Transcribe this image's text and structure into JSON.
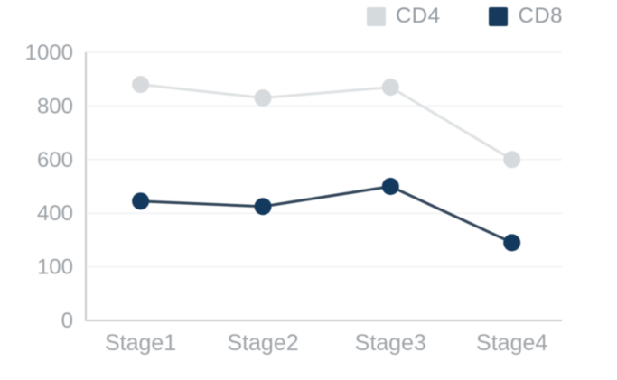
{
  "legend": {
    "items": [
      {
        "label": "CD4",
        "color": "#d5dadd"
      },
      {
        "label": "CD8",
        "color": "#16395c"
      }
    ]
  },
  "chart_data": {
    "type": "line",
    "categories": [
      "Stage1",
      "Stage2",
      "Stage3",
      "Stage4"
    ],
    "series": [
      {
        "name": "CD4",
        "values": [
          880,
          830,
          870,
          600
        ],
        "line_color": "#dfe2e4",
        "marker_color": "#d6dadd"
      },
      {
        "name": "CD8",
        "values": [
          445,
          425,
          500,
          290
        ],
        "line_color": "#32465a",
        "marker_color": "#14395e"
      }
    ],
    "y_tick_labels": [
      "0",
      "100",
      "400",
      "600",
      "800",
      "1000"
    ],
    "ylim": [
      0,
      1000
    ],
    "grid": "faint-horizontal",
    "legend_position": "top-right",
    "axis_color": "#c8cccf",
    "gridline_color": "#f0f2f3",
    "tick_label_color": "#9ca2a7"
  }
}
